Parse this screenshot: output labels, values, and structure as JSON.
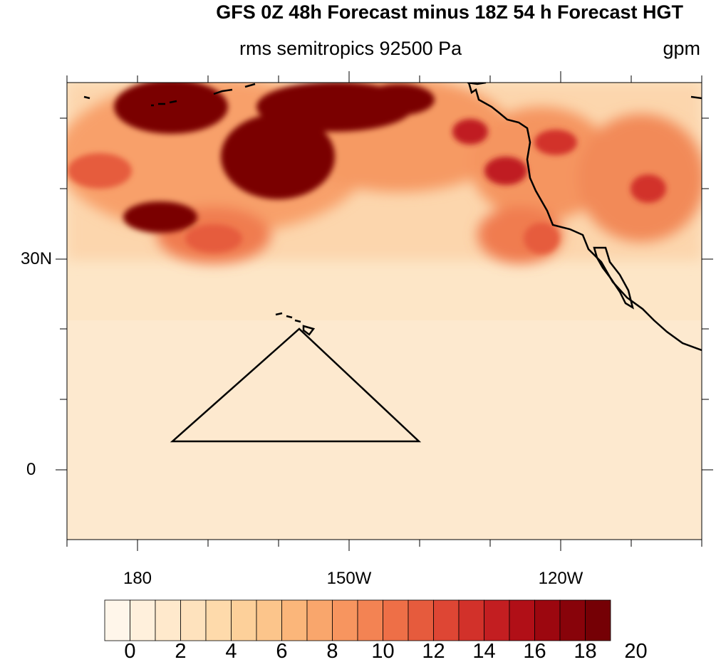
{
  "title": "GFS 0Z 48h Forecast minus 18Z 54 h Forecast HGT",
  "subtitle": "rms semitropics 92500 Pa",
  "units": "gpm",
  "map": {
    "lat_labels": [
      "30N",
      "0"
    ],
    "lon_labels": [
      "180",
      "150W",
      "120W"
    ]
  },
  "colorbar": {
    "labels": [
      "0",
      "2",
      "4",
      "6",
      "8",
      "10",
      "12",
      "14",
      "16",
      "18",
      "20"
    ],
    "colors": [
      "#fff6ea",
      "#fff0dc",
      "#ffe9cc",
      "#fee2bd",
      "#fedaab",
      "#fdd09a",
      "#fcc58b",
      "#fbb67a",
      "#f9a66c",
      "#f7955f",
      "#f38353",
      "#ee6f47",
      "#e65b3d",
      "#de4634",
      "#d2312a",
      "#c31e21",
      "#b10f17",
      "#9c070f",
      "#88030a",
      "#750005"
    ]
  },
  "colors": {
    "background_field": "#fde6c7",
    "outline": "#000000"
  }
}
